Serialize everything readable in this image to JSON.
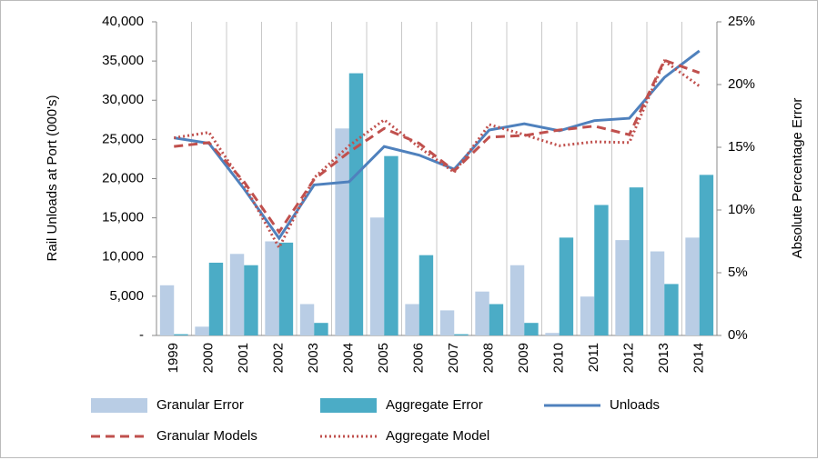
{
  "chart_data": {
    "type": "bar",
    "y_label": "Rail Unloads at Port (000's)",
    "y2_label": "Absolute Percentage Error",
    "categories": [
      "1999",
      "2000",
      "2001",
      "2002",
      "2003",
      "2004",
      "2005",
      "2006",
      "2007",
      "2008",
      "2009",
      "2010",
      "2011",
      "2012",
      "2013",
      "2014"
    ],
    "ylim": [
      0,
      40000
    ],
    "yticks": [
      {
        "value": 0,
        "label": "-"
      },
      {
        "value": 5000,
        "label": "5,000"
      },
      {
        "value": 10000,
        "label": "10,000"
      },
      {
        "value": 15000,
        "label": "15,000"
      },
      {
        "value": 20000,
        "label": "20,000"
      },
      {
        "value": 25000,
        "label": "25,000"
      },
      {
        "value": 30000,
        "label": "30,000"
      },
      {
        "value": 35000,
        "label": "35,000"
      },
      {
        "value": 40000,
        "label": "40,000"
      }
    ],
    "y2lim": [
      0,
      25
    ],
    "y2ticks": [
      {
        "value": 0,
        "label": "0%"
      },
      {
        "value": 5,
        "label": "5%"
      },
      {
        "value": 10,
        "label": "10%"
      },
      {
        "value": 15,
        "label": "15%"
      },
      {
        "value": 20,
        "label": "20%"
      },
      {
        "value": 25,
        "label": "25%"
      }
    ],
    "series": [
      {
        "name": "Granular Error",
        "type": "bar",
        "axis": "y2",
        "color": "#b9cde5",
        "values": [
          4.0,
          0.7,
          6.5,
          7.5,
          2.5,
          16.5,
          9.4,
          2.5,
          2.0,
          3.5,
          5.6,
          0.2,
          3.1,
          7.6,
          6.7,
          7.8
        ]
      },
      {
        "name": "Aggregate Error",
        "type": "bar",
        "axis": "y2",
        "color": "#4bacc6",
        "values": [
          0.1,
          5.8,
          5.6,
          7.4,
          1.0,
          20.9,
          14.3,
          6.4,
          0.1,
          2.5,
          1.0,
          7.8,
          10.4,
          11.8,
          4.1,
          12.8
        ]
      },
      {
        "name": "Unloads",
        "type": "line",
        "dash": "solid",
        "color": "#4f81bd",
        "values": [
          25200,
          24500,
          18700,
          12400,
          19200,
          19600,
          24100,
          23000,
          21200,
          26200,
          27000,
          26100,
          27400,
          27700,
          32900,
          36300
        ]
      },
      {
        "name": "Granular Models",
        "type": "line",
        "dash": "dashed",
        "color": "#c0504d",
        "values": [
          24100,
          24600,
          19600,
          13200,
          19900,
          23400,
          26400,
          24500,
          21000,
          25300,
          25500,
          26200,
          26700,
          25600,
          35100,
          33500
        ]
      },
      {
        "name": "Aggregate Model",
        "type": "line",
        "dash": "dotted",
        "color": "#c0504d",
        "values": [
          25200,
          25900,
          19200,
          11200,
          20100,
          24200,
          27500,
          24000,
          20800,
          26900,
          25600,
          24200,
          24700,
          24600,
          35000,
          31800
        ]
      }
    ]
  }
}
